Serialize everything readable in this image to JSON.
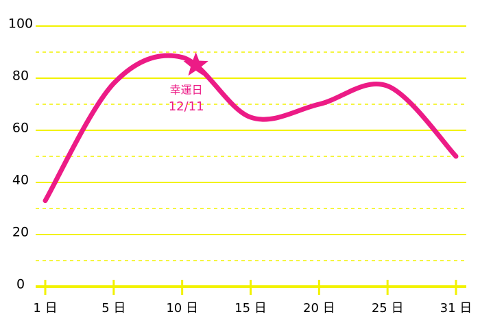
{
  "chart_data": {
    "type": "line",
    "x": [
      1,
      5,
      10,
      15,
      20,
      25,
      31
    ],
    "series": [
      {
        "color": "#ec1b86",
        "values": [
          33,
          78,
          88,
          65,
          70,
          77,
          50
        ]
      }
    ],
    "xticks": [
      {
        "value": 1,
        "label": "1 日"
      },
      {
        "value": 5,
        "label": "5 日"
      },
      {
        "value": 10,
        "label": "10 日"
      },
      {
        "value": 15,
        "label": "15 日"
      },
      {
        "value": 20,
        "label": "20 日"
      },
      {
        "value": 25,
        "label": "25 日"
      },
      {
        "value": 31,
        "label": "31 日"
      }
    ],
    "ylim": [
      0,
      100
    ],
    "yticks": [
      0,
      20,
      40,
      60,
      80,
      100
    ],
    "grid": true,
    "grid_color": "#f2f200",
    "highlight": {
      "x": 11,
      "value": 85,
      "label": "幸運日",
      "date": "12/11"
    }
  }
}
